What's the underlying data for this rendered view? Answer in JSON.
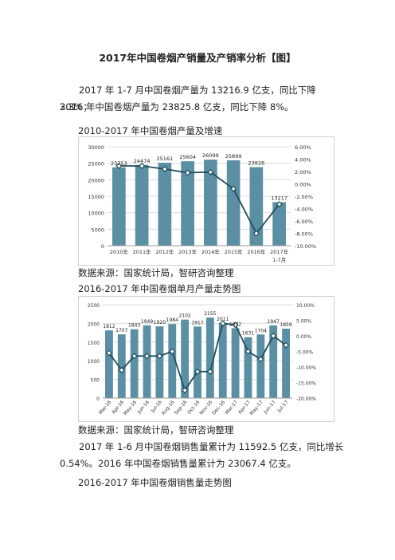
{
  "title": "2017年中国卷烟产销量及产销率分析【图】",
  "paragraph1_line1": "2017 年 1-7 月中国卷烟产量为 13216.9 亿支，同比下降 3.3%；",
  "paragraph1_line2": "2016 年中国卷烟产量为 23825.8 亿支，同比下降 8%。",
  "caption1": "2010-2017 年中国卷烟产量及增速",
  "source1": "数据来源：国家统计局，智研咨询整理",
  "caption2": "2016-2017 年中国卷烟单月产量走势图",
  "source2": "数据来源：国家统计局，智研咨询整理",
  "paragraph2_line1": "2017 年 1-6 月中国卷烟销售量累计为 11592.5 亿支，同比增长",
  "paragraph2_line2": "0.54%。2016 年中国卷烟销售量累计为 23067.4 亿支。",
  "caption3": "2016-2017 年中国卷烟销售量走势图",
  "colors": {
    "bar": "#5b8fa3",
    "line": "#1f4e5a",
    "marker_fill": "#ffffff"
  },
  "chart_data": [
    {
      "type": "bar",
      "categories": [
        "2010年",
        "2011年",
        "2012年",
        "2013年",
        "2014年",
        "2015年",
        "2016年",
        "2017年1-7月"
      ],
      "series": [
        {
          "values": [
            23753,
            24474,
            25161,
            25604,
            26099,
            25899,
            23826,
            13217
          ]
        },
        {
          "type": "line",
          "axis": "right",
          "values": [
            2.9,
            2.9,
            2.4,
            1.8,
            1.9,
            -0.8,
            -8.0,
            -3.3
          ]
        }
      ],
      "data_labels": [
        "23753",
        "24474",
        "25161",
        "25604",
        "26099",
        "25899",
        "23826",
        "13217"
      ],
      "ylim": [
        0,
        30000
      ],
      "y_ticks": [
        "0",
        "5000",
        "10000",
        "15000",
        "20000",
        "25000",
        "30000"
      ],
      "y2lim": [
        -10,
        6
      ],
      "y2_ticks": [
        "-10.00%",
        "-8.00%",
        "-6.00%",
        "-4.00%",
        "-2.00%",
        "0.00%",
        "2.00%",
        "4.00%",
        "6.00%"
      ],
      "grid": true
    },
    {
      "type": "bar",
      "categories": [
        "Mar-16",
        "Apr-16",
        "May-16",
        "Jun-16",
        "Jul-16",
        "Aug-16",
        "Sep-16",
        "Oct-16",
        "Nov-16",
        "Dec-16",
        "Mar-17",
        "Apr-17",
        "May-17",
        "Jun-17",
        "Jul-17"
      ],
      "series": [
        {
          "values": [
            1812,
            1707,
            1843,
            1949,
            1920,
            1984,
            2102,
            1917,
            2155,
            2011,
            1872,
            1631,
            1704,
            1947,
            1859
          ]
        },
        {
          "type": "line",
          "axis": "right",
          "values": [
            -5.5,
            -11.0,
            -6.5,
            -6.5,
            -6.5,
            -5.0,
            -17.5,
            -11.5,
            -11.5,
            4.0,
            3.5,
            -5.0,
            -7.5,
            0.0,
            -3.0
          ]
        }
      ],
      "data_labels": [
        "1812",
        "1707",
        "1843",
        "1949",
        "1920",
        "1984",
        "2102",
        "1917",
        "2155",
        "2011",
        "1872",
        "1631",
        "1704",
        "1947",
        "1859"
      ],
      "ylim": [
        0,
        2500
      ],
      "y_ticks": [
        "0",
        "500",
        "1000",
        "1500",
        "2000",
        "2500"
      ],
      "y2lim": [
        -20,
        10
      ],
      "y2_ticks": [
        "-20.00%",
        "-15.00%",
        "-10.00%",
        "-5.00%",
        "0.00%",
        "5.00%",
        "10.00%"
      ],
      "grid": true
    }
  ]
}
